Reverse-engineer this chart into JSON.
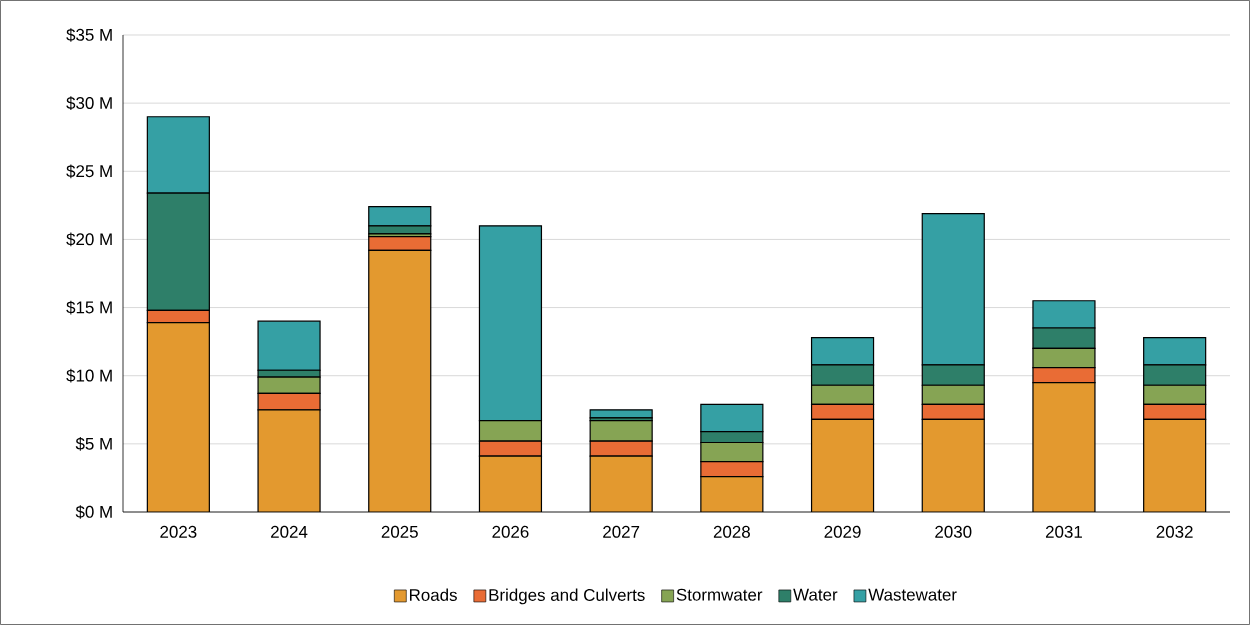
{
  "chart_data": {
    "type": "bar",
    "stacked": true,
    "categories": [
      "2023",
      "2024",
      "2025",
      "2026",
      "2027",
      "2028",
      "2029",
      "2030",
      "2031",
      "2032"
    ],
    "series": [
      {
        "name": "Roads",
        "color": "#e3992f",
        "values": [
          13.9,
          7.5,
          19.2,
          4.1,
          4.1,
          2.6,
          6.8,
          6.8,
          9.5,
          6.8
        ]
      },
      {
        "name": "Bridges and Culverts",
        "color": "#e96c35",
        "values": [
          0.9,
          1.2,
          1.0,
          1.1,
          1.1,
          1.1,
          1.1,
          1.1,
          1.1,
          1.1
        ]
      },
      {
        "name": "Stormwater",
        "color": "#86a454",
        "values": [
          0,
          1.2,
          0.2,
          1.5,
          1.5,
          1.4,
          1.4,
          1.4,
          1.4,
          1.4
        ]
      },
      {
        "name": "Water",
        "color": "#2e7f69",
        "values": [
          8.6,
          0.5,
          0.6,
          null,
          0.2,
          0.8,
          1.5,
          1.5,
          1.5,
          1.5
        ]
      },
      {
        "name": "Wastewater",
        "color": "#35a0a4",
        "values": [
          5.6,
          3.6,
          1.4,
          14.3,
          0.6,
          2.0,
          2.0,
          11.1,
          2.0,
          2.0
        ]
      }
    ],
    "ylim": [
      0,
      35
    ],
    "yticks": [
      {
        "value": 0,
        "label": "$0 M"
      },
      {
        "value": 5,
        "label": "$5 M"
      },
      {
        "value": 10,
        "label": "$10 M"
      },
      {
        "value": 15,
        "label": "$15 M"
      },
      {
        "value": 20,
        "label": "$20 M"
      },
      {
        "value": 25,
        "label": "$25 M"
      },
      {
        "value": 30,
        "label": "$30 M"
      },
      {
        "value": 35,
        "label": "$35 M"
      }
    ],
    "grid": "y",
    "legend": "bottom"
  }
}
